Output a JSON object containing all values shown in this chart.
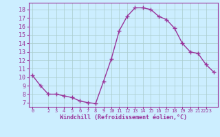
{
  "x": [
    0,
    1,
    2,
    3,
    4,
    5,
    6,
    7,
    8,
    9,
    10,
    11,
    12,
    13,
    14,
    15,
    16,
    17,
    18,
    19,
    20,
    21,
    22,
    23
  ],
  "y": [
    10.2,
    9.0,
    8.0,
    8.0,
    7.8,
    7.6,
    7.2,
    7.0,
    6.9,
    9.5,
    12.2,
    15.5,
    17.2,
    18.2,
    18.2,
    18.0,
    17.2,
    16.8,
    15.8,
    14.0,
    13.0,
    12.8,
    11.5,
    10.6
  ],
  "line_color": "#993399",
  "marker": "+",
  "marker_size": 4,
  "marker_linewidth": 1.0,
  "line_width": 1.0,
  "bg_color": "#cceeff",
  "grid_color": "#aacccc",
  "xlabel": "Windchill (Refroidissement éolien,°C)",
  "xlabel_color": "#993399",
  "tick_color": "#993399",
  "spine_color": "#993399",
  "ylim": [
    6.5,
    18.8
  ],
  "xlim": [
    -0.5,
    23.5
  ],
  "yticks": [
    7,
    8,
    9,
    10,
    11,
    12,
    13,
    14,
    15,
    16,
    17,
    18
  ],
  "ytick_labels": [
    "7",
    "8",
    "9",
    "10",
    "11",
    "12",
    "13",
    "14",
    "15",
    "16",
    "17",
    "18"
  ],
  "xtick_positions": [
    0,
    2,
    3,
    4,
    5,
    6,
    7,
    8,
    9,
    10,
    11,
    12,
    13,
    14,
    15,
    16,
    17,
    18,
    19,
    20,
    21,
    22
  ],
  "xtick_labels": [
    "0",
    "2",
    "3",
    "4",
    "5",
    "6",
    "7",
    "8",
    "9",
    "10",
    "11",
    "12",
    "13",
    "14",
    "15",
    "16",
    "17",
    "18",
    "19",
    "20",
    "21",
    "2223"
  ],
  "xlabel_fontsize": 6.0,
  "xlabel_fontweight": "bold",
  "ytick_fontsize": 6.0,
  "xtick_fontsize": 5.0
}
